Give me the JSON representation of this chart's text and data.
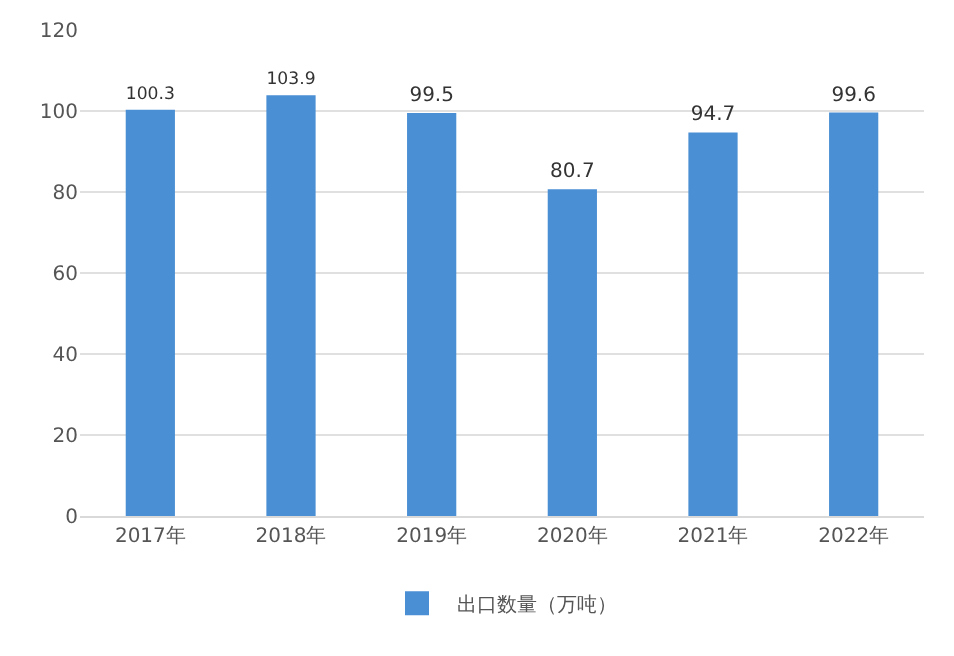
{
  "chart_data": {
    "type": "bar",
    "categories": [
      "2017年",
      "2018年",
      "2019年",
      "2020年",
      "2021年",
      "2022年"
    ],
    "series": [
      {
        "name": "出口数量（万吨）",
        "color": "#4a8fd4",
        "values": [
          100.3,
          103.9,
          99.5,
          80.7,
          94.7,
          99.6
        ]
      }
    ],
    "ylim": [
      0,
      120
    ],
    "yticks": [
      0,
      20,
      40,
      60,
      80,
      100,
      120
    ],
    "grid": "y",
    "legend": "bottom",
    "data_labels": true
  }
}
